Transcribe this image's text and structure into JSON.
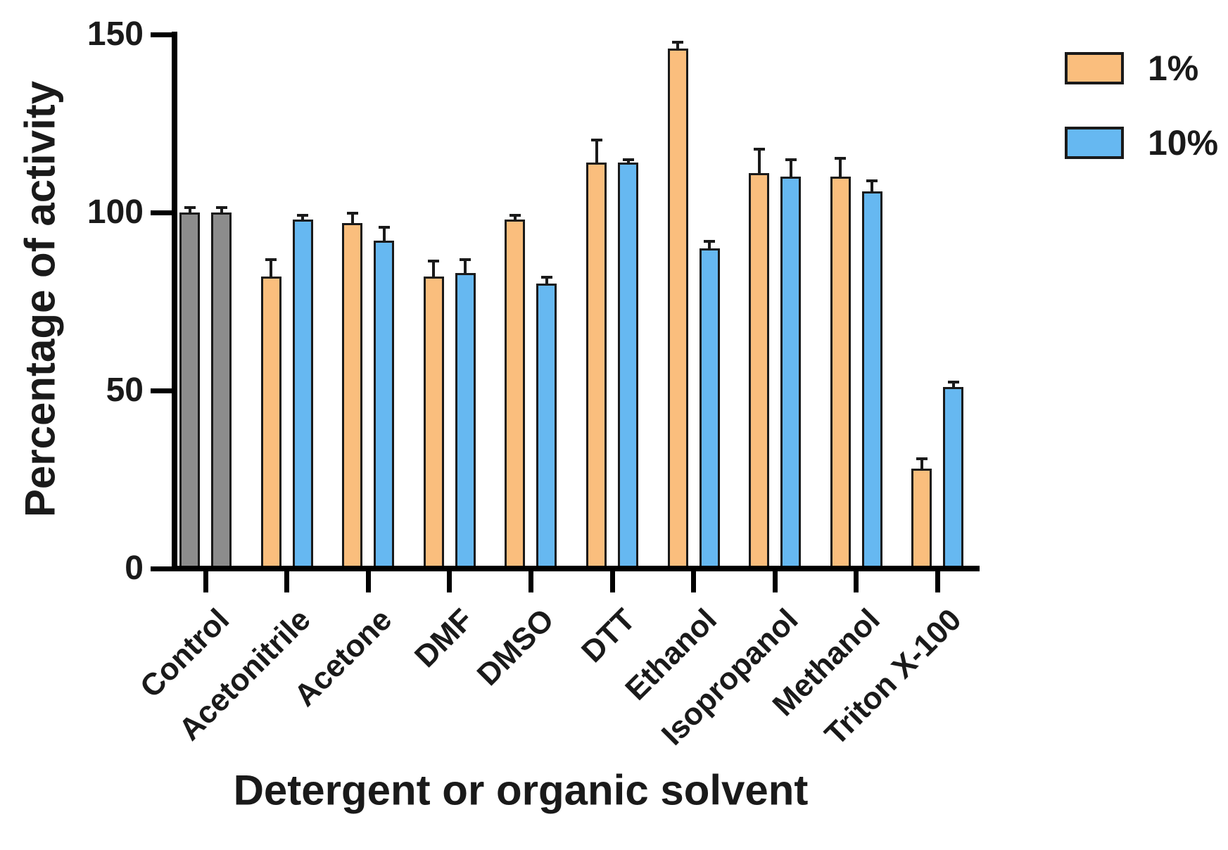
{
  "chart_data": {
    "type": "bar",
    "title": "",
    "xlabel": "Detergent or organic solvent",
    "ylabel": "Percentage of activity",
    "categories": [
      "Control",
      "Acetonitrile",
      "Acetone",
      "DMF",
      "DMSO",
      "DTT",
      "Ethanol",
      "Isopropanol",
      "Methanol",
      "Triton X-100"
    ],
    "series": [
      {
        "name": "1%",
        "color": "#FABE7D",
        "values": [
          100,
          82,
          97,
          82,
          98,
          114,
          146,
          111,
          110,
          28
        ],
        "errors": [
          1.5,
          5,
          3,
          4.5,
          1.5,
          6.5,
          2,
          7,
          5.5,
          3
        ]
      },
      {
        "name": "10%",
        "color": "#66B8F1",
        "values": [
          100,
          98,
          92,
          83,
          80,
          114,
          90,
          110,
          106,
          51
        ],
        "errors": [
          1.5,
          1.5,
          4,
          4,
          2,
          1,
          2,
          5,
          3,
          1.5
        ]
      }
    ],
    "control_category": "Control",
    "control_color": "#8C8C8C",
    "bar_border_color": "#1A1A1A",
    "axis_color": "#000000",
    "ylim": [
      0,
      150
    ],
    "yticks": [
      0,
      50,
      100,
      150
    ],
    "grid": false,
    "legend_position": "top-right",
    "error_bar_style": "upper cap only"
  }
}
